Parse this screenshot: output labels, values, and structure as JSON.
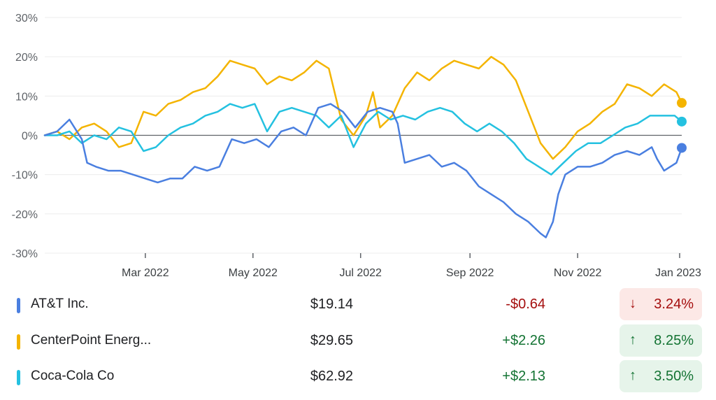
{
  "chart_data": {
    "type": "line",
    "yticks": [
      "30%",
      "20%",
      "10%",
      "0%",
      "-10%",
      "-20%",
      "-30%"
    ],
    "ylim": [
      -30,
      30
    ],
    "xticks": [
      "Mar 2022",
      "May 2022",
      "Jul 2022",
      "Sep 2022",
      "Nov 2022",
      "Jan 2023"
    ],
    "x_range": [
      "2022-01-03",
      "2022-12-30"
    ],
    "zero_line": true,
    "series": [
      {
        "name": "AT&T Inc.",
        "color": "#4a7fe0",
        "points": [
          [
            "2022-01-03",
            0
          ],
          [
            "2022-01-10",
            1
          ],
          [
            "2022-01-17",
            4
          ],
          [
            "2022-01-24",
            -1
          ],
          [
            "2022-01-27",
            -7
          ],
          [
            "2022-02-01",
            -8
          ],
          [
            "2022-02-08",
            -9
          ],
          [
            "2022-02-15",
            -9
          ],
          [
            "2022-02-22",
            -10
          ],
          [
            "2022-03-01",
            -11
          ],
          [
            "2022-03-08",
            -12
          ],
          [
            "2022-03-15",
            -11
          ],
          [
            "2022-03-22",
            -11
          ],
          [
            "2022-03-29",
            -8
          ],
          [
            "2022-04-05",
            -9
          ],
          [
            "2022-04-12",
            -8
          ],
          [
            "2022-04-19",
            -1
          ],
          [
            "2022-04-26",
            -2
          ],
          [
            "2022-05-03",
            -1
          ],
          [
            "2022-05-10",
            -3
          ],
          [
            "2022-05-17",
            1
          ],
          [
            "2022-05-24",
            2
          ],
          [
            "2022-05-31",
            0
          ],
          [
            "2022-06-07",
            7
          ],
          [
            "2022-06-14",
            8
          ],
          [
            "2022-06-21",
            6
          ],
          [
            "2022-06-28",
            2
          ],
          [
            "2022-07-05",
            6
          ],
          [
            "2022-07-12",
            7
          ],
          [
            "2022-07-19",
            6
          ],
          [
            "2022-07-22",
            3
          ],
          [
            "2022-07-26",
            -7
          ],
          [
            "2022-08-02",
            -6
          ],
          [
            "2022-08-09",
            -5
          ],
          [
            "2022-08-16",
            -8
          ],
          [
            "2022-08-23",
            -7
          ],
          [
            "2022-08-30",
            -9
          ],
          [
            "2022-09-06",
            -13
          ],
          [
            "2022-09-13",
            -15
          ],
          [
            "2022-09-20",
            -17
          ],
          [
            "2022-09-27",
            -20
          ],
          [
            "2022-10-04",
            -22
          ],
          [
            "2022-10-11",
            -25
          ],
          [
            "2022-10-14",
            -26
          ],
          [
            "2022-10-18",
            -22
          ],
          [
            "2022-10-21",
            -15
          ],
          [
            "2022-10-25",
            -10
          ],
          [
            "2022-11-01",
            -8
          ],
          [
            "2022-11-08",
            -8
          ],
          [
            "2022-11-15",
            -7
          ],
          [
            "2022-11-22",
            -5
          ],
          [
            "2022-11-29",
            -4
          ],
          [
            "2022-12-06",
            -5
          ],
          [
            "2022-12-13",
            -3
          ],
          [
            "2022-12-16",
            -6
          ],
          [
            "2022-12-20",
            -9
          ],
          [
            "2022-12-27",
            -7
          ],
          [
            "2022-12-30",
            -3.2
          ]
        ]
      },
      {
        "name": "CenterPoint Energ...",
        "color": "#f4b400",
        "points": [
          [
            "2022-01-03",
            0
          ],
          [
            "2022-01-10",
            1
          ],
          [
            "2022-01-17",
            -1
          ],
          [
            "2022-01-24",
            2
          ],
          [
            "2022-01-31",
            3
          ],
          [
            "2022-02-07",
            1
          ],
          [
            "2022-02-14",
            -3
          ],
          [
            "2022-02-21",
            -2
          ],
          [
            "2022-02-28",
            6
          ],
          [
            "2022-03-07",
            5
          ],
          [
            "2022-03-14",
            8
          ],
          [
            "2022-03-21",
            9
          ],
          [
            "2022-03-28",
            11
          ],
          [
            "2022-04-04",
            12
          ],
          [
            "2022-04-11",
            15
          ],
          [
            "2022-04-18",
            19
          ],
          [
            "2022-04-25",
            18
          ],
          [
            "2022-05-02",
            17
          ],
          [
            "2022-05-09",
            13
          ],
          [
            "2022-05-16",
            15
          ],
          [
            "2022-05-23",
            14
          ],
          [
            "2022-05-30",
            16
          ],
          [
            "2022-06-06",
            19
          ],
          [
            "2022-06-13",
            17
          ],
          [
            "2022-06-20",
            4
          ],
          [
            "2022-06-27",
            0
          ],
          [
            "2022-07-04",
            5
          ],
          [
            "2022-07-08",
            11
          ],
          [
            "2022-07-12",
            2
          ],
          [
            "2022-07-19",
            5
          ],
          [
            "2022-07-26",
            12
          ],
          [
            "2022-08-02",
            16
          ],
          [
            "2022-08-09",
            14
          ],
          [
            "2022-08-16",
            17
          ],
          [
            "2022-08-23",
            19
          ],
          [
            "2022-08-30",
            18
          ],
          [
            "2022-09-06",
            17
          ],
          [
            "2022-09-13",
            20
          ],
          [
            "2022-09-20",
            18
          ],
          [
            "2022-09-27",
            14
          ],
          [
            "2022-10-04",
            6
          ],
          [
            "2022-10-11",
            -2
          ],
          [
            "2022-10-18",
            -6
          ],
          [
            "2022-10-25",
            -3
          ],
          [
            "2022-11-01",
            1
          ],
          [
            "2022-11-08",
            3
          ],
          [
            "2022-11-15",
            6
          ],
          [
            "2022-11-22",
            8
          ],
          [
            "2022-11-29",
            13
          ],
          [
            "2022-12-06",
            12
          ],
          [
            "2022-12-13",
            10
          ],
          [
            "2022-12-20",
            13
          ],
          [
            "2022-12-27",
            11
          ],
          [
            "2022-12-30",
            8.25
          ]
        ]
      },
      {
        "name": "Coca-Cola Co",
        "color": "#24c1e0",
        "points": [
          [
            "2022-01-03",
            0
          ],
          [
            "2022-01-10",
            0
          ],
          [
            "2022-01-17",
            1
          ],
          [
            "2022-01-24",
            -2
          ],
          [
            "2022-01-31",
            0
          ],
          [
            "2022-02-07",
            -1
          ],
          [
            "2022-02-14",
            2
          ],
          [
            "2022-02-21",
            1
          ],
          [
            "2022-02-28",
            -4
          ],
          [
            "2022-03-07",
            -3
          ],
          [
            "2022-03-14",
            0
          ],
          [
            "2022-03-21",
            2
          ],
          [
            "2022-03-28",
            3
          ],
          [
            "2022-04-04",
            5
          ],
          [
            "2022-04-11",
            6
          ],
          [
            "2022-04-18",
            8
          ],
          [
            "2022-04-25",
            7
          ],
          [
            "2022-05-02",
            8
          ],
          [
            "2022-05-09",
            1
          ],
          [
            "2022-05-16",
            6
          ],
          [
            "2022-05-23",
            7
          ],
          [
            "2022-05-30",
            6
          ],
          [
            "2022-06-06",
            5
          ],
          [
            "2022-06-13",
            2
          ],
          [
            "2022-06-20",
            5
          ],
          [
            "2022-06-27",
            -3
          ],
          [
            "2022-07-04",
            3
          ],
          [
            "2022-07-11",
            6
          ],
          [
            "2022-07-18",
            4
          ],
          [
            "2022-07-25",
            5
          ],
          [
            "2022-08-01",
            4
          ],
          [
            "2022-08-08",
            6
          ],
          [
            "2022-08-15",
            7
          ],
          [
            "2022-08-22",
            6
          ],
          [
            "2022-08-29",
            3
          ],
          [
            "2022-09-05",
            1
          ],
          [
            "2022-09-12",
            3
          ],
          [
            "2022-09-19",
            1
          ],
          [
            "2022-09-26",
            -2
          ],
          [
            "2022-10-03",
            -6
          ],
          [
            "2022-10-10",
            -8
          ],
          [
            "2022-10-17",
            -10
          ],
          [
            "2022-10-24",
            -7
          ],
          [
            "2022-10-31",
            -4
          ],
          [
            "2022-11-07",
            -2
          ],
          [
            "2022-11-14",
            -2
          ],
          [
            "2022-11-21",
            0
          ],
          [
            "2022-11-28",
            2
          ],
          [
            "2022-12-05",
            3
          ],
          [
            "2022-12-12",
            5
          ],
          [
            "2022-12-19",
            5
          ],
          [
            "2022-12-26",
            5
          ],
          [
            "2022-12-30",
            3.5
          ]
        ]
      }
    ]
  },
  "legend": [
    {
      "name": "AT&T Inc.",
      "color": "#4a7fe0",
      "price": "$19.14",
      "change": "-$0.64",
      "change_color": "#a50e0e",
      "pct": "3.24%",
      "arrow": "↓",
      "badge_bg": "#fce8e6",
      "badge_fg": "#a50e0e"
    },
    {
      "name": "CenterPoint Energ...",
      "color": "#f4b400",
      "price": "$29.65",
      "change": "+$2.26",
      "change_color": "#137333",
      "pct": "8.25%",
      "arrow": "↑",
      "badge_bg": "#e6f4ea",
      "badge_fg": "#137333"
    },
    {
      "name": "Coca-Cola Co",
      "color": "#24c1e0",
      "price": "$62.92",
      "change": "+$2.13",
      "change_color": "#137333",
      "pct": "3.50%",
      "arrow": "↑",
      "badge_bg": "#e6f4ea",
      "badge_fg": "#137333"
    }
  ]
}
